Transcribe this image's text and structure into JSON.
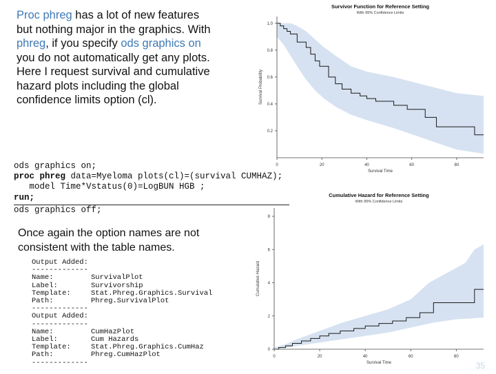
{
  "intro": {
    "p1": "Proc phreg",
    "p2": " has a lot of new features but nothing major in the graphics. With ",
    "p3": "phreg",
    "p4": ", if you specify ",
    "p5": "ods graphics on",
    "p6": " you do not automatically get any plots. Here I request survival and cumulative hazard plots including the global confidence limits option (cl)."
  },
  "code": {
    "line1": "ods graphics on;",
    "line2_kw": "proc phreg",
    "line2_rest": " data=Myeloma plots(cl)=(survival CUMHAZ);",
    "line3": "   model Time*Vstatus(0)=LogBUN HGB ;",
    "line4": "run;",
    "line5": "ods graphics off;"
  },
  "note": "Once again the option names are not consistent with the table names.",
  "output": {
    "block1": {
      "header": "Output Added:",
      "sep": "-------------",
      "rows": [
        {
          "key": "Name:",
          "value": "SurvivalPlot"
        },
        {
          "key": "Label:",
          "value": "Survivorship"
        },
        {
          "key": "Template:",
          "value": "Stat.Phreg.Graphics.Survival"
        },
        {
          "key": "Path:",
          "value": "Phreg.SurvivalPlot"
        }
      ],
      "end": "-------------"
    },
    "block2": {
      "header": "Output Added:",
      "sep": "-------------",
      "rows": [
        {
          "key": "Name:",
          "value": "CumHazPlot"
        },
        {
          "key": "Label:",
          "value": "Cum Hazards"
        },
        {
          "key": "Template:",
          "value": "Stat.Phreg.Graphics.CumHaz"
        },
        {
          "key": "Path:",
          "value": "Phreg.CumHazPlot"
        }
      ],
      "end": "-------------"
    }
  },
  "chart_data": [
    {
      "type": "line",
      "title": "Survivor Function for Reference Setting",
      "subtitle": "With 95% Confidence Limits",
      "xlabel": "Survival Time",
      "ylabel": "Survival Probability",
      "xlim": [
        0,
        92
      ],
      "ylim": [
        0,
        1.05
      ],
      "xticks": [
        "0",
        "20",
        "40",
        "60",
        "80"
      ],
      "yticks": [
        "0.2",
        "0.4",
        "0.6",
        "0.8",
        "1.0"
      ],
      "series": [
        {
          "name": "Survival",
          "x": [
            0,
            1.5,
            3,
            4.5,
            6,
            9,
            13,
            15,
            17,
            19,
            23,
            26,
            29,
            33,
            37,
            40,
            44,
            52,
            58,
            66,
            71,
            88,
            92
          ],
          "values": [
            1.0,
            0.98,
            0.96,
            0.94,
            0.92,
            0.86,
            0.82,
            0.77,
            0.72,
            0.68,
            0.6,
            0.55,
            0.51,
            0.48,
            0.46,
            0.44,
            0.42,
            0.39,
            0.36,
            0.3,
            0.23,
            0.17,
            0.17
          ]
        },
        {
          "name": "Upper 95% CL",
          "x": [
            0,
            3,
            6,
            9,
            13,
            17,
            21,
            26,
            33,
            40,
            52,
            66,
            80,
            92
          ],
          "values": [
            1.0,
            1.0,
            1.0,
            0.98,
            0.94,
            0.88,
            0.82,
            0.76,
            0.68,
            0.64,
            0.6,
            0.54,
            0.48,
            0.46
          ]
        },
        {
          "name": "Lower 95% CL",
          "x": [
            0,
            3,
            6,
            9,
            13,
            17,
            21,
            26,
            33,
            40,
            52,
            66,
            80,
            92
          ],
          "values": [
            0.9,
            0.84,
            0.76,
            0.68,
            0.58,
            0.5,
            0.44,
            0.38,
            0.32,
            0.28,
            0.22,
            0.14,
            0.06,
            0.03
          ]
        }
      ]
    },
    {
      "type": "line",
      "title": "Cumulative Hazard for Reference Setting",
      "subtitle": "With 95% Confidence Limits",
      "xlabel": "Survival Time",
      "ylabel": "Cumulative Hazard",
      "xlim": [
        0,
        92
      ],
      "ylim": [
        0,
        8.5
      ],
      "xticks": [
        "0",
        "20",
        "40",
        "60",
        "80"
      ],
      "yticks": [
        "0",
        "2",
        "4",
        "6",
        "8"
      ],
      "series": [
        {
          "name": "Cumulative Hazard",
          "x": [
            0,
            2,
            5,
            8,
            12,
            16,
            20,
            24,
            29,
            35,
            40,
            46,
            52,
            58,
            64,
            70,
            78,
            88,
            92
          ],
          "values": [
            0.0,
            0.1,
            0.2,
            0.35,
            0.5,
            0.65,
            0.8,
            0.95,
            1.1,
            1.25,
            1.4,
            1.55,
            1.7,
            1.9,
            2.2,
            2.8,
            2.8,
            3.6,
            3.6
          ]
        },
        {
          "name": "Upper 95% CL",
          "x": [
            0,
            5,
            10,
            16,
            22,
            30,
            40,
            50,
            60,
            68,
            76,
            84,
            88,
            92
          ],
          "values": [
            0.1,
            0.3,
            0.6,
            0.9,
            1.2,
            1.6,
            2.0,
            2.4,
            3.0,
            4.0,
            4.6,
            5.2,
            6.0,
            6.3
          ]
        },
        {
          "name": "Lower 95% CL",
          "x": [
            0,
            10,
            20,
            30,
            40,
            50,
            60,
            70,
            80,
            92
          ],
          "values": [
            0.0,
            0.2,
            0.4,
            0.6,
            0.8,
            1.0,
            1.3,
            1.6,
            1.8,
            1.9
          ]
        }
      ]
    }
  ],
  "colors": {
    "accent": "#3e79b5",
    "band": "#d6e2f1",
    "line": "#1a1a1a"
  },
  "page_number": "35"
}
